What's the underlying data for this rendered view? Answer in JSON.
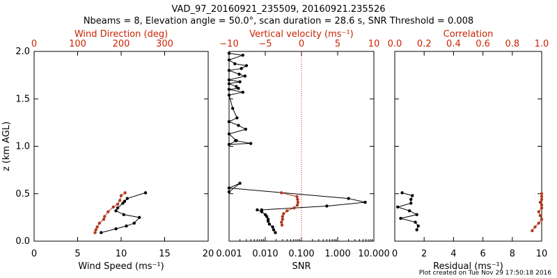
{
  "header": {
    "line1": "VAD_97_20160921_235509, 20160921.235526",
    "line2": "Nbeams = 8, Elevation angle = 50.0°, scan duration = 28.6 s, SNR Threshold = 0.008"
  },
  "footer": {
    "created": "Plot created on Tue Nov 29 17:50:18 2016"
  },
  "colors": {
    "axis": "#000000",
    "secondary": "#cc2200",
    "primary_series": "#000000",
    "secondary_series": "#b33a1f"
  },
  "chart_data": [
    {
      "type": "line",
      "panel": "wind",
      "title": "Wind Direction (deg)",
      "xlabel": "Wind Speed (ms⁻¹)",
      "ylabel": "z (km AGL)",
      "xlim": [
        0,
        20
      ],
      "xticks": [
        0,
        5,
        10,
        15,
        20
      ],
      "x2lim": [
        0,
        400
      ],
      "x2ticks": [
        0,
        100,
        200,
        300
      ],
      "ylim": [
        0,
        2
      ],
      "yticks": [
        "0.0",
        "0.5",
        "1.0",
        "1.5",
        "2.0"
      ],
      "series": [
        {
          "name": "Wind Speed",
          "axis": "bottom",
          "color": "#000000",
          "points": [
            [
              7.7,
              0.09
            ],
            [
              9.4,
              0.13
            ],
            [
              10.6,
              0.16
            ],
            [
              11.5,
              0.19
            ],
            [
              12.1,
              0.25
            ],
            [
              10.3,
              0.28
            ],
            [
              9.4,
              0.32
            ],
            [
              9.6,
              0.35
            ],
            [
              10.2,
              0.4
            ],
            [
              10.4,
              0.42
            ],
            [
              10.7,
              0.45
            ],
            [
              12.8,
              0.51
            ]
          ]
        },
        {
          "name": "Wind Direction",
          "axis": "top",
          "color": "#b33a1f",
          "points": [
            [
              140,
              0.09
            ],
            [
              142,
              0.12
            ],
            [
              145,
              0.15
            ],
            [
              150,
              0.19
            ],
            [
              160,
              0.23
            ],
            [
              162,
              0.26
            ],
            [
              170,
              0.31
            ],
            [
              182,
              0.36
            ],
            [
              192,
              0.39
            ],
            [
              197,
              0.43
            ],
            [
              200,
              0.48
            ],
            [
              209,
              0.51
            ]
          ]
        }
      ]
    },
    {
      "type": "line",
      "panel": "vertical-velocity-snr",
      "title": "Vertical velocity (ms⁻¹)",
      "xlabel": "SNR",
      "x2lim": [
        -10,
        10
      ],
      "x2ticks": [
        "−10",
        "−5",
        "0",
        "5",
        "10"
      ],
      "xscale": "log",
      "xlim": [
        0.001,
        10
      ],
      "xticks": [
        "0.001",
        "0.010",
        "0.100",
        "1.000",
        "10.000"
      ],
      "ylim": [
        0,
        2
      ],
      "reference_line": {
        "x2": 0,
        "style": "dotted"
      },
      "series": [
        {
          "name": "Vertical velocity",
          "axis": "top",
          "color": "#000000",
          "points": [
            [
              -10,
              0.52
            ],
            [
              -8.5,
              0.61
            ],
            [
              -10,
              0.56
            ],
            [
              6.5,
              0.45
            ],
            [
              8.8,
              0.41
            ],
            [
              3.5,
              0.37
            ],
            [
              -5.5,
              0.33
            ]
          ]
        },
        {
          "name": "Vertical velocity (upper)",
          "axis": "top",
          "color": "#000000",
          "points": [
            [
              -10,
              1.98
            ],
            [
              -8.1,
              1.96
            ],
            [
              -10,
              1.91
            ],
            [
              -9.2,
              1.87
            ],
            [
              -7.6,
              1.85
            ],
            [
              -8.3,
              1.82
            ],
            [
              -10,
              1.8
            ],
            [
              -8.6,
              1.76
            ],
            [
              -7.8,
              1.74
            ],
            [
              -10,
              1.7
            ],
            [
              -8.5,
              1.68
            ],
            [
              -10,
              1.66
            ],
            [
              -9.0,
              1.63
            ],
            [
              -8.7,
              1.61
            ],
            [
              -10,
              1.6
            ],
            [
              -8.1,
              1.57
            ],
            [
              -10,
              1.54
            ],
            [
              -9.5,
              1.4
            ],
            [
              -8.9,
              1.3
            ],
            [
              -10,
              1.26
            ],
            [
              -8.7,
              1.22
            ],
            [
              -7.7,
              1.18
            ],
            [
              -10,
              1.13
            ],
            [
              -9.0,
              1.06
            ],
            [
              -10,
              1.02
            ],
            [
              -7.0,
              1.03
            ],
            [
              -9.1,
              1.06
            ]
          ]
        },
        {
          "name": "SNR",
          "axis": "bottom",
          "color": "#b33a1f",
          "points": [
            [
              0.028,
              0.51
            ],
            [
              0.075,
              0.47
            ],
            [
              0.078,
              0.44
            ],
            [
              0.08,
              0.41
            ],
            [
              0.077,
              0.38
            ],
            [
              0.063,
              0.35
            ],
            [
              0.04,
              0.32
            ],
            [
              0.032,
              0.29
            ],
            [
              0.03,
              0.26
            ],
            [
              0.03,
              0.23
            ],
            [
              0.028,
              0.2
            ],
            [
              0.029,
              0.17
            ]
          ]
        },
        {
          "name": "SNR (lower)",
          "axis": "bottom",
          "color": "#000000",
          "points": [
            [
              0.006,
              0.33
            ],
            [
              0.008,
              0.31
            ],
            [
              0.01,
              0.28
            ],
            [
              0.011,
              0.26
            ],
            [
              0.012,
              0.23
            ],
            [
              0.012,
              0.21
            ],
            [
              0.013,
              0.18
            ],
            [
              0.016,
              0.15
            ],
            [
              0.017,
              0.12
            ],
            [
              0.019,
              0.09
            ]
          ]
        }
      ]
    },
    {
      "type": "line",
      "panel": "correlation-residual",
      "title": "Correlation",
      "xlabel": "Residual (ms⁻¹)",
      "xlim": [
        0,
        10
      ],
      "xticks": [
        0,
        2,
        4,
        6,
        8,
        10
      ],
      "x2lim": [
        0,
        1
      ],
      "x2ticks": [
        "0.0",
        "0.2",
        "0.4",
        "0.6",
        "0.8",
        "1.0"
      ],
      "ylim": [
        0,
        2
      ],
      "series": [
        {
          "name": "Residual",
          "axis": "bottom",
          "color": "#000000",
          "points": [
            [
              0.5,
              0.51
            ],
            [
              1.2,
              0.48
            ],
            [
              1.1,
              0.44
            ],
            [
              1.1,
              0.4
            ],
            [
              0.2,
              0.36
            ],
            [
              1.0,
              0.32
            ],
            [
              1.5,
              0.28
            ],
            [
              0.4,
              0.24
            ],
            [
              1.4,
              0.2
            ],
            [
              1.6,
              0.16
            ],
            [
              1.5,
              0.12
            ]
          ]
        },
        {
          "name": "Correlation",
          "axis": "top",
          "color": "#b33a1f",
          "points": [
            [
              1.0,
              0.5
            ],
            [
              1.0,
              0.47
            ],
            [
              1.0,
              0.44
            ],
            [
              0.99,
              0.41
            ],
            [
              1.0,
              0.38
            ],
            [
              1.0,
              0.35
            ],
            [
              0.98,
              0.31
            ],
            [
              0.99,
              0.27
            ],
            [
              1.0,
              0.23
            ],
            [
              0.98,
              0.19
            ],
            [
              0.955,
              0.15
            ],
            [
              0.935,
              0.11
            ]
          ]
        }
      ]
    }
  ]
}
